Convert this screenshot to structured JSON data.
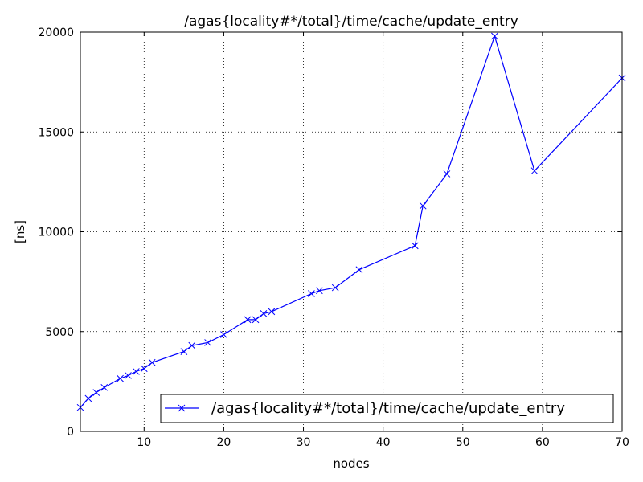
{
  "chart_data": {
    "type": "line",
    "title": "/agas{locality#*/total}/time/cache/update_entry",
    "xlabel": "nodes",
    "ylabel": "[ns]",
    "xlim": [
      2,
      70
    ],
    "ylim": [
      0,
      20000
    ],
    "xticks": [
      10,
      20,
      30,
      40,
      50,
      60,
      70
    ],
    "yticks": [
      0,
      5000,
      10000,
      15000,
      20000
    ],
    "grid": true,
    "legend": "lower-right",
    "series": [
      {
        "name": "/agas{locality#*/total}/time/cache/update_entry",
        "color": "#0000ff",
        "marker": "x",
        "x": [
          2,
          3,
          4,
          5,
          7,
          8,
          9,
          10,
          11,
          15,
          16,
          18,
          20,
          23,
          24,
          25,
          26,
          31,
          32,
          34,
          37,
          44,
          45,
          48,
          54,
          59,
          70
        ],
        "y": [
          1200,
          1650,
          1950,
          2200,
          2650,
          2800,
          3000,
          3150,
          3450,
          4000,
          4300,
          4450,
          4850,
          5600,
          5600,
          5900,
          6000,
          6900,
          7050,
          7200,
          8100,
          9300,
          11300,
          12900,
          19800,
          13050,
          17700
        ]
      }
    ]
  }
}
